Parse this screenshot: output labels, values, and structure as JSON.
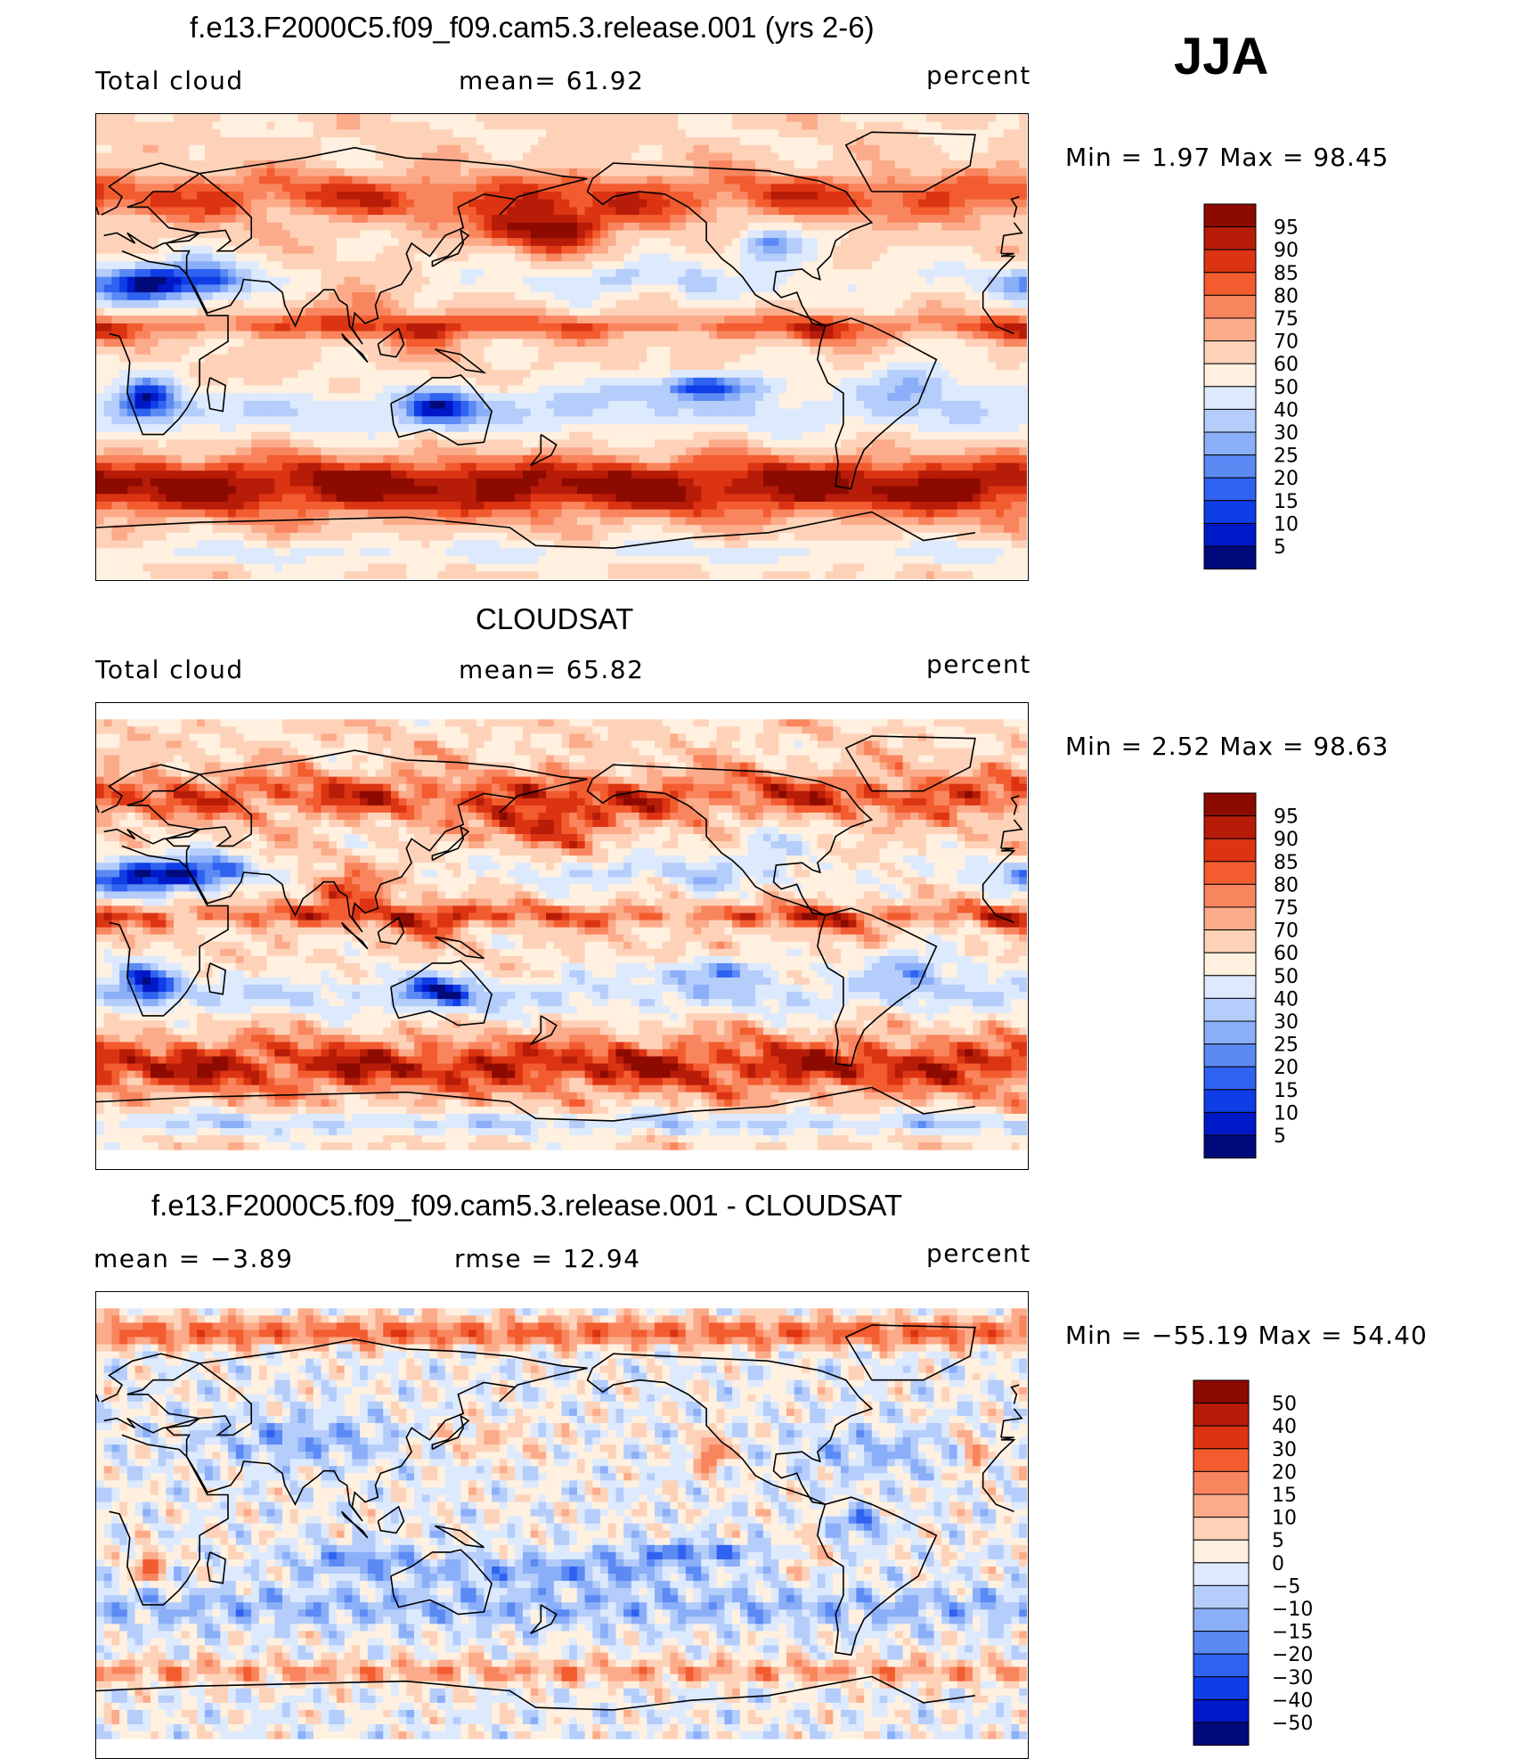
{
  "season": "JJA",
  "colors": {
    "seq_12": [
      "#000a7a",
      "#0019c8",
      "#0f3de6",
      "#2f62f0",
      "#5b8af5",
      "#8aaef8",
      "#b5cdfb",
      "#dde9fd",
      "#fff0e0",
      "#fdd2b8",
      "#fcab8a",
      "#f9855e",
      "#f25c2f",
      "#dc3412",
      "#b71c08",
      "#8c0a00"
    ],
    "diff": [
      "#000a7a",
      "#0019c8",
      "#0f3de6",
      "#2f62f0",
      "#5b8af5",
      "#8aaef8",
      "#b5cdfb",
      "#dde9fd",
      "#fff0e0",
      "#fdd2b8",
      "#fcab8a",
      "#f9855e",
      "#f25c2f",
      "#dc3412",
      "#b71c08",
      "#8c0a00"
    ]
  },
  "panels": [
    {
      "id": "model",
      "title": "f.e13.F2000C5.f09_f09.cam5.3.release.001 (yrs 2-6)",
      "left_label": "Total cloud",
      "center_label": "mean=   61.92",
      "right_label": "percent",
      "minmax": "Min  =     1.97  Max  =    98.45",
      "levels": [
        "95",
        "90",
        "85",
        "80",
        "75",
        "70",
        "60",
        "50",
        "40",
        "30",
        "25",
        "20",
        "15",
        "10",
        "5"
      ],
      "pattern": "model"
    },
    {
      "id": "obs",
      "title": "CLOUDSAT",
      "left_label": "Total cloud",
      "center_label": "mean=   65.82",
      "right_label": "percent",
      "minmax": "Min  =     2.52  Max  =    98.63",
      "levels": [
        "95",
        "90",
        "85",
        "80",
        "75",
        "70",
        "60",
        "50",
        "40",
        "30",
        "25",
        "20",
        "15",
        "10",
        "5"
      ],
      "pattern": "obs"
    },
    {
      "id": "diff",
      "title": "f.e13.F2000C5.f09_f09.cam5.3.release.001 - CLOUDSAT",
      "left_label": "mean  =    −3.89",
      "center_label": "rmse  =    12.94",
      "right_label": "percent",
      "minmax": "Min  = −55.19  Max  =    54.40",
      "levels": [
        "50",
        "40",
        "30",
        "20",
        "15",
        "10",
        "5",
        "0",
        "−5",
        "−10",
        "−15",
        "−20",
        "−30",
        "−40",
        "−50"
      ],
      "pattern": "diff"
    }
  ]
}
